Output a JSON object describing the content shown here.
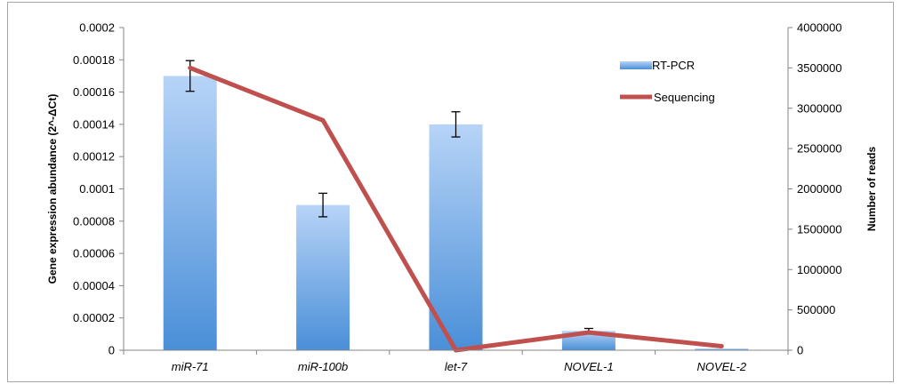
{
  "chart_data": {
    "type": "bar",
    "categories": [
      "miR-71",
      "miR-100b",
      "let-7",
      "NOVEL-1",
      "NOVEL-2"
    ],
    "series": [
      {
        "name": "RT-PCR",
        "kind": "bar",
        "axis": "left",
        "values": [
          0.00017,
          9e-05,
          0.00014,
          1.2e-05,
          1e-06
        ],
        "error": [
          9.5e-06,
          7.3e-06,
          7.8e-06,
          1.5e-06,
          0.0
        ]
      },
      {
        "name": "Sequencing",
        "kind": "line",
        "axis": "right",
        "values": [
          3500000,
          2850000,
          0,
          220000,
          50000
        ]
      }
    ],
    "ylabel": "Gene expression abundance (2^-ΔCt)",
    "y2label": "Number of reads",
    "ylim": [
      0,
      0.0002
    ],
    "y2lim": [
      0,
      4000000
    ],
    "yticks": [
      "0",
      "0.00002",
      "0.00004",
      "0.00006",
      "0.00008",
      "0.0001",
      "0.00012",
      "0.00014",
      "0.00016",
      "0.00018",
      "0.0002"
    ],
    "y2ticks": [
      "0",
      "500000",
      "1000000",
      "1500000",
      "2000000",
      "2500000",
      "3000000",
      "3500000",
      "4000000"
    ],
    "legend_position": "top-right",
    "grid": false,
    "colors": {
      "bar_top": "#b7d4f7",
      "bar_bottom": "#4a8fd8",
      "line": "#c0504d",
      "axis": "#868686"
    }
  }
}
